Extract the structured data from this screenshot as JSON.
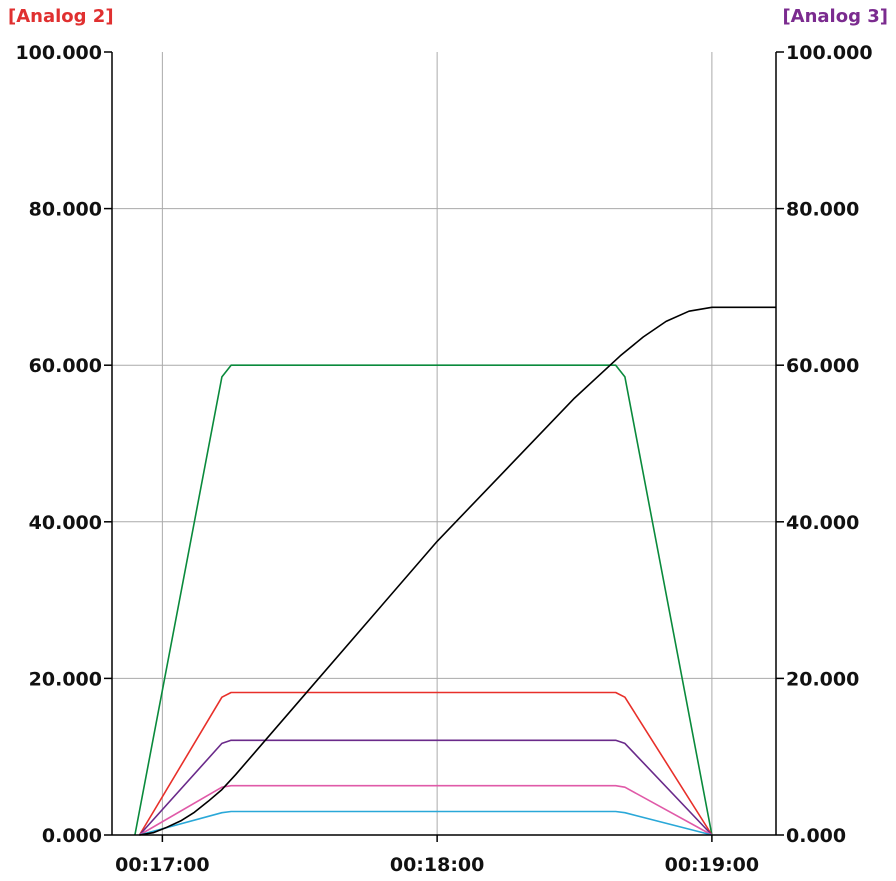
{
  "chart_data": {
    "type": "line",
    "left_axis": {
      "title": "[Analog 2]",
      "title_color": "#e03030",
      "ylim": [
        0,
        100
      ],
      "ticks": [
        "0.000",
        "20.000",
        "40.000",
        "60.000",
        "80.000",
        "100.000"
      ]
    },
    "right_axis": {
      "title": "[Analog 3]",
      "title_color": "#7b2b8f",
      "ylim": [
        0,
        100
      ],
      "ticks": [
        "0.000",
        "20.000",
        "40.000",
        "60.000",
        "80.000",
        "100.000"
      ]
    },
    "x_axis": {
      "xlim": [
        "00:16:49",
        "00:19:14"
      ],
      "ticks": [
        "00:17:00",
        "00:18:00",
        "00:19:00"
      ]
    },
    "grid": true,
    "series": [
      {
        "color": "#0a8a3c",
        "points": [
          [
            "00:16:54",
            0
          ],
          [
            "00:17:13",
            58.5
          ],
          [
            "00:17:15",
            60
          ],
          [
            "00:18:39",
            60
          ],
          [
            "00:18:41",
            58.5
          ],
          [
            "00:19:00",
            0
          ]
        ]
      },
      {
        "color": "#e8302a",
        "points": [
          [
            "00:16:55",
            0
          ],
          [
            "00:17:13",
            17.6
          ],
          [
            "00:17:15",
            18.2
          ],
          [
            "00:18:39",
            18.2
          ],
          [
            "00:18:41",
            17.6
          ],
          [
            "00:19:00",
            0
          ]
        ]
      },
      {
        "color": "#6a2a8a",
        "points": [
          [
            "00:16:55",
            0
          ],
          [
            "00:17:13",
            11.7
          ],
          [
            "00:17:15",
            12.1
          ],
          [
            "00:18:39",
            12.1
          ],
          [
            "00:18:41",
            11.7
          ],
          [
            "00:19:00",
            0
          ]
        ]
      },
      {
        "color": "#e05aa8",
        "points": [
          [
            "00:16:55",
            0
          ],
          [
            "00:17:13",
            6.1
          ],
          [
            "00:17:15",
            6.3
          ],
          [
            "00:18:39",
            6.3
          ],
          [
            "00:18:41",
            6.1
          ],
          [
            "00:19:00",
            0
          ]
        ]
      },
      {
        "color": "#2aa8d8",
        "points": [
          [
            "00:16:55",
            0
          ],
          [
            "00:17:13",
            2.85
          ],
          [
            "00:17:15",
            3.0
          ],
          [
            "00:18:39",
            3.0
          ],
          [
            "00:18:41",
            2.85
          ],
          [
            "00:19:00",
            0
          ]
        ]
      },
      {
        "color": "#000000",
        "points": [
          [
            "00:16:55",
            0
          ],
          [
            "00:16:58",
            0.3
          ],
          [
            "00:17:01",
            1.0
          ],
          [
            "00:17:04",
            1.8
          ],
          [
            "00:17:07",
            2.9
          ],
          [
            "00:17:10",
            4.3
          ],
          [
            "00:17:13",
            5.8
          ],
          [
            "00:17:16",
            7.7
          ],
          [
            "00:17:30",
            17.2
          ],
          [
            "00:18:00",
            37.5
          ],
          [
            "00:18:30",
            55.8
          ],
          [
            "00:18:40",
            61.2
          ],
          [
            "00:18:45",
            63.6
          ],
          [
            "00:18:50",
            65.6
          ],
          [
            "00:18:55",
            66.9
          ],
          [
            "00:19:00",
            67.4
          ],
          [
            "00:19:14",
            67.4
          ]
        ]
      }
    ]
  }
}
